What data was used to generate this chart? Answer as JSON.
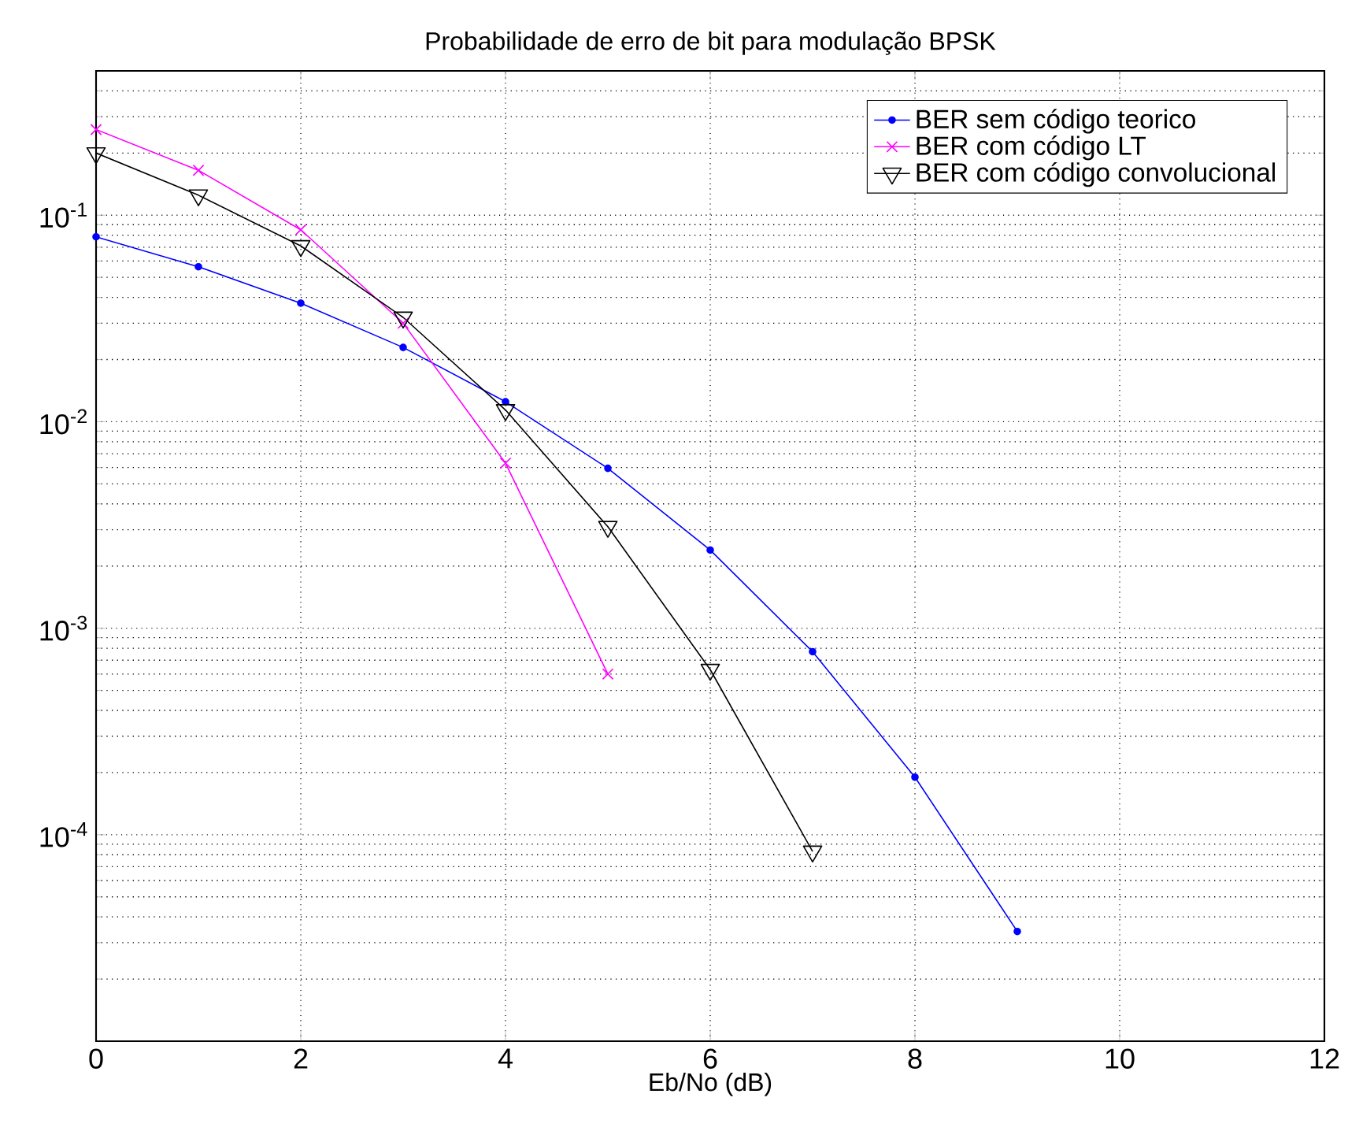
{
  "chart_data": {
    "type": "line",
    "title": "Probabilidade de erro de bit para modulação BPSK",
    "xlabel": "Eb/No (dB)",
    "x": [
      0,
      1,
      2,
      3,
      4,
      5,
      6,
      7,
      8,
      9
    ],
    "series": [
      {
        "name": "BER sem código teorico",
        "color": "#0000ff",
        "marker": "circle",
        "values": [
          0.0786,
          0.0563,
          0.0375,
          0.0229,
          0.0125,
          0.00595,
          0.00239,
          0.00077,
          0.00019,
          3.4e-05
        ]
      },
      {
        "name": "BER com código LT",
        "color": "#ff00ff",
        "marker": "cross",
        "values": [
          0.26,
          0.165,
          0.085,
          0.03,
          0.0063,
          0.0006,
          null,
          null,
          null,
          null
        ]
      },
      {
        "name": "BER com código convolucional",
        "color": "#000000",
        "marker": "triangle",
        "values": [
          0.2,
          0.125,
          0.071,
          0.032,
          0.0114,
          0.0031,
          0.00063,
          8.3e-05,
          null,
          null
        ]
      }
    ],
    "xlim": [
      0,
      12
    ],
    "xticks": [
      0,
      2,
      4,
      6,
      8,
      10,
      12
    ],
    "ylim": [
      1e-05,
      0.5
    ],
    "yticks": [
      {
        "value": 0.0001,
        "label": "10$^{-4}$"
      },
      {
        "value": 0.001,
        "label": "10$^{-3}$"
      },
      {
        "value": 0.01,
        "label": "10$^{-2}$"
      },
      {
        "value": 0.1,
        "label": "10$^{-1}$"
      }
    ],
    "log": "y",
    "grid": true,
    "legend": "top right",
    "line_style": "solid"
  }
}
